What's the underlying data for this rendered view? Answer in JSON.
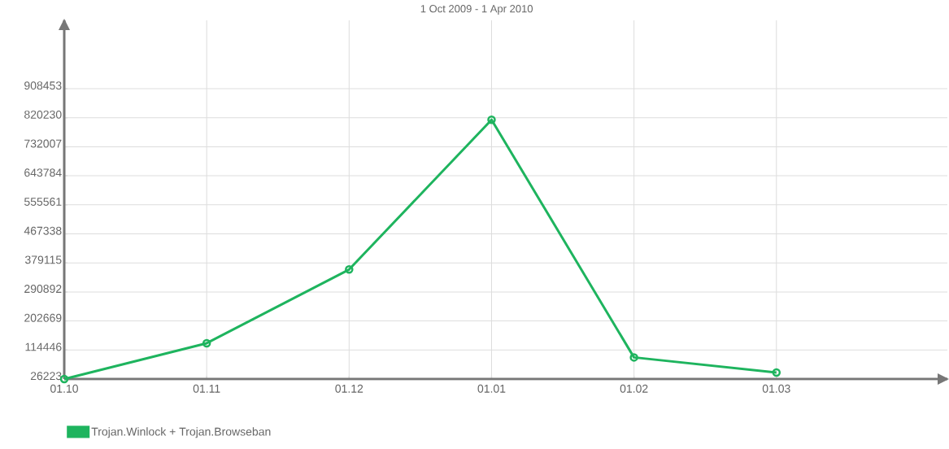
{
  "chart_data": {
    "type": "line",
    "title": "1 Oct 2009 - 1 Apr 2010",
    "categories": [
      "01.10",
      "01.11",
      "01.12",
      "01.01",
      "01.02",
      "01.03"
    ],
    "series": [
      {
        "name": "Trojan.Winlock + Trojan.Browseban",
        "color": "#1eb45e",
        "values": [
          26223,
          135000,
          359000,
          814000,
          92000,
          46000
        ]
      }
    ],
    "ylim": [
      26223,
      1116000
    ],
    "yticks": [
      26223,
      114446,
      202669,
      290892,
      379115,
      467338,
      555561,
      643784,
      732007,
      820230,
      908453
    ],
    "grid": true,
    "legend": "bottom left",
    "marker": "circle",
    "line_style": "solid"
  }
}
